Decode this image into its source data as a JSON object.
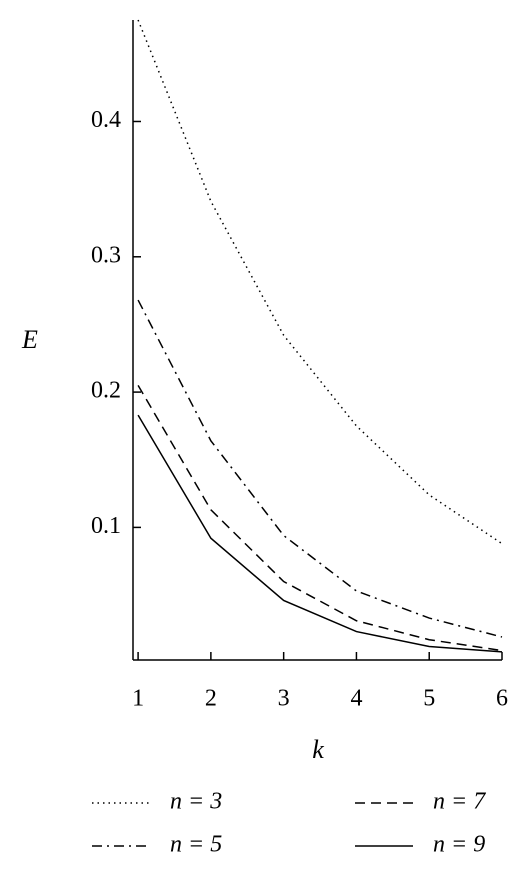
{
  "chart_data": {
    "type": "line",
    "x_label": "k",
    "y_label": "E",
    "x": [
      1,
      2,
      3,
      4,
      5,
      6
    ],
    "series": [
      {
        "name": "n = 3",
        "color": "#000000",
        "dash": "dotted",
        "values": [
          0.475,
          0.341,
          0.242,
          0.175,
          0.124,
          0.088
        ]
      },
      {
        "name": "n = 5",
        "color": "#000000",
        "dash": "dashdot",
        "values": [
          0.268,
          0.164,
          0.094,
          0.053,
          0.033,
          0.019
        ]
      },
      {
        "name": "n = 7",
        "color": "#000000",
        "dash": "dashed",
        "values": [
          0.205,
          0.113,
          0.06,
          0.031,
          0.017,
          0.009
        ]
      },
      {
        "name": "n = 9",
        "color": "#000000",
        "dash": "solid",
        "values": [
          0.183,
          0.092,
          0.046,
          0.023,
          0.012,
          0.008
        ]
      }
    ],
    "xlim": [
      0.93,
      6
    ],
    "xticks": [
      1,
      2,
      3,
      4,
      5,
      6
    ],
    "ylim": [
      0.002,
      0.475
    ],
    "yticks": [
      0.1,
      0.2,
      0.3,
      0.4
    ],
    "grid": false,
    "legend": "bottom"
  }
}
